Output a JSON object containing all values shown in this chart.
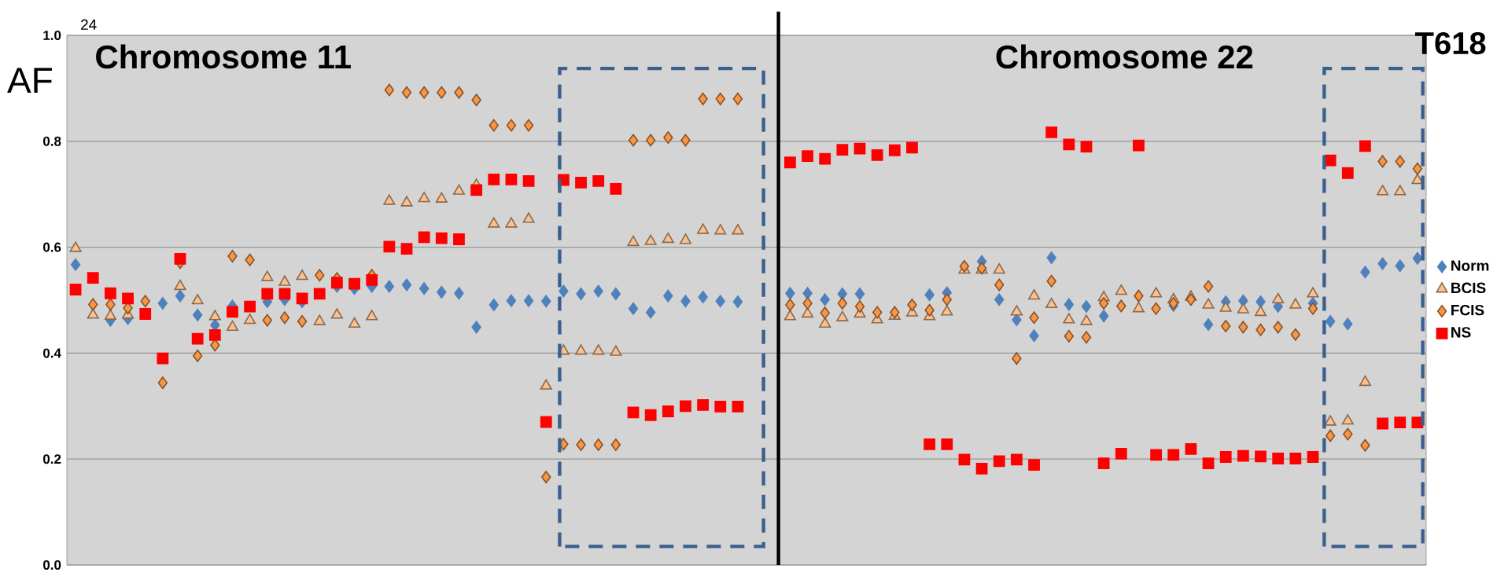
{
  "chart_data": {
    "type": "scatter",
    "title": "T618",
    "ylabel": "AF",
    "annotations": [
      "24",
      "Chromosome 11",
      "Chromosome 22"
    ],
    "categories": [
      null,
      null,
      null,
      null,
      null,
      null,
      null,
      null,
      null,
      null,
      null,
      null,
      null,
      null,
      null,
      null,
      null,
      null,
      null,
      null,
      null,
      null,
      null,
      null,
      null,
      null,
      null,
      null,
      null,
      null,
      null,
      null,
      null,
      null,
      null,
      null,
      null,
      null,
      null,
      null,
      null,
      null,
      null,
      null,
      null,
      null,
      null,
      null,
      null,
      null,
      null,
      null,
      null,
      null,
      null,
      null,
      null,
      null,
      null,
      null,
      null,
      null,
      null,
      null,
      null,
      null,
      null,
      null,
      null,
      null,
      null,
      null,
      null,
      null,
      null,
      null,
      null,
      null
    ],
    "series": [
      {
        "name": "Norm",
        "color": "#4f81bd",
        "marker": "diamond",
        "values": [
          0.567,
          null,
          0.462,
          0.465,
          null,
          0.494,
          0.508,
          0.472,
          0.453,
          0.489,
          null,
          0.497,
          0.501,
          0.497,
          null,
          0.526,
          0.522,
          0.526,
          0.526,
          0.529,
          0.522,
          0.515,
          0.513,
          0.449,
          0.491,
          0.499,
          0.499,
          0.498,
          0.517,
          0.512,
          0.517,
          0.512,
          0.484,
          0.477,
          0.508,
          0.498,
          0.506,
          0.498,
          0.497,
          null,
          null,
          0.513,
          0.513,
          0.501,
          0.512,
          0.512,
          null,
          null,
          null,
          0.51,
          0.514,
          null,
          0.573,
          0.501,
          0.463,
          0.433,
          0.58,
          0.492,
          0.488,
          0.47,
          null,
          null,
          null,
          0.49,
          null,
          0.454,
          0.497,
          0.499,
          0.497,
          0.488,
          null,
          0.494,
          0.46,
          0.455,
          0.553,
          0.569,
          0.565,
          0.579
        ]
      },
      {
        "name": "BCIS",
        "color": "#fac090",
        "marker": "triangle",
        "values": [
          0.598,
          0.472,
          0.47,
          0.472,
          null,
          null,
          0.526,
          0.499,
          0.469,
          0.449,
          0.462,
          0.543,
          0.534,
          0.545,
          0.46,
          0.472,
          0.455,
          0.469,
          0.687,
          0.684,
          0.692,
          0.691,
          0.706,
          0.717,
          0.644,
          0.644,
          0.653,
          0.338,
          0.404,
          0.404,
          0.404,
          0.402,
          0.609,
          0.611,
          0.615,
          0.613,
          0.632,
          0.631,
          0.631,
          null,
          null,
          0.469,
          0.474,
          0.455,
          0.467,
          0.474,
          0.463,
          0.47,
          0.476,
          0.469,
          0.478,
          0.557,
          0.557,
          0.557,
          0.478,
          0.508,
          0.492,
          0.463,
          0.46,
          0.505,
          0.517,
          0.484,
          0.512,
          0.501,
          0.506,
          0.491,
          0.485,
          0.482,
          0.477,
          0.501,
          0.491,
          0.512,
          0.27,
          0.272,
          0.345,
          0.705,
          0.705,
          0.726
        ]
      },
      {
        "name": "FCIS",
        "color": "#f79646",
        "marker": "diamond",
        "values": [
          null,
          0.492,
          0.492,
          0.485,
          0.498,
          0.344,
          0.571,
          0.395,
          0.415,
          0.583,
          0.576,
          0.462,
          0.467,
          0.46,
          0.547,
          0.541,
          null,
          0.547,
          0.897,
          0.892,
          0.892,
          0.892,
          0.892,
          0.878,
          0.83,
          0.83,
          0.83,
          0.166,
          0.228,
          0.227,
          0.227,
          0.227,
          0.802,
          0.802,
          0.807,
          0.802,
          0.88,
          0.88,
          0.88,
          null,
          null,
          0.491,
          0.494,
          0.476,
          0.494,
          0.488,
          0.477,
          0.477,
          0.491,
          0.481,
          0.501,
          0.564,
          0.56,
          0.529,
          0.39,
          0.467,
          0.536,
          0.432,
          0.43,
          0.494,
          0.489,
          0.508,
          0.484,
          0.494,
          0.501,
          0.526,
          0.451,
          0.449,
          0.444,
          0.449,
          0.435,
          0.484,
          0.244,
          0.247,
          0.226,
          0.762,
          0.762,
          0.748
        ]
      },
      {
        "name": "NS",
        "color": "#ff0000",
        "marker": "square",
        "values": [
          0.52,
          0.542,
          0.513,
          0.503,
          0.474,
          0.39,
          0.578,
          0.427,
          0.434,
          0.478,
          0.488,
          0.512,
          0.512,
          0.503,
          0.512,
          0.533,
          0.531,
          0.538,
          0.601,
          0.597,
          0.619,
          0.617,
          0.615,
          0.708,
          0.728,
          0.728,
          0.725,
          0.27,
          0.727,
          0.722,
          0.725,
          0.71,
          0.288,
          0.283,
          0.29,
          0.3,
          0.302,
          0.299,
          0.299,
          null,
          null,
          0.76,
          0.772,
          0.767,
          0.784,
          0.786,
          0.774,
          0.783,
          0.788,
          0.228,
          0.228,
          0.199,
          0.182,
          0.196,
          0.199,
          0.189,
          0.817,
          0.794,
          0.79,
          0.192,
          0.21,
          0.792,
          0.208,
          0.208,
          0.219,
          0.192,
          0.204,
          0.206,
          0.205,
          0.201,
          0.201,
          0.204,
          0.764,
          0.74,
          0.791,
          0.267,
          0.269,
          0.269
        ]
      }
    ],
    "ylim": [
      0,
      1
    ],
    "yticks": [
      {
        "value": 0,
        "label": "0.0"
      },
      0.2,
      0.4,
      0.6,
      0.8,
      {
        "value": 1,
        "label": "1.0"
      }
    ],
    "grid": "y",
    "legend": "right"
  }
}
